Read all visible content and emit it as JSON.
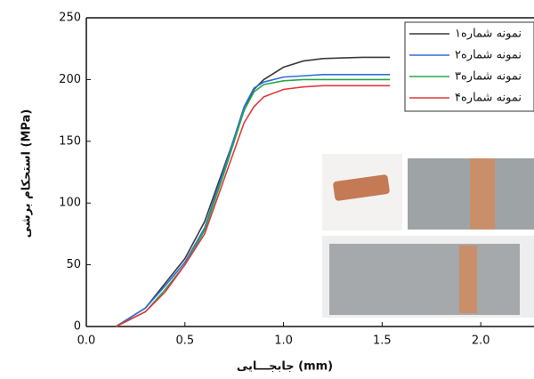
{
  "chart_data": {
    "type": "line",
    "xlabel": "جابجـــایی (mm)",
    "ylabel": "استحکام برشی (MPa)",
    "x": [
      0.15,
      0.3,
      0.4,
      0.5,
      0.6,
      0.7,
      0.8,
      0.85,
      0.9,
      1.0,
      1.1,
      1.2,
      1.4,
      1.54
    ],
    "series": [
      {
        "name": "نمونه شماره۱",
        "color": "#3a3a3a",
        "values": [
          0,
          15,
          35,
          55,
          85,
          130,
          175,
          192,
          200,
          210,
          215,
          217,
          218,
          218
        ]
      },
      {
        "name": "نمونه شماره۲",
        "color": "#2f6fd8",
        "values": [
          0,
          15,
          33,
          52,
          80,
          128,
          178,
          193,
          198,
          202,
          203,
          204,
          204,
          204
        ]
      },
      {
        "name": "نمونه شماره۳",
        "color": "#27a84a",
        "values": [
          0,
          12,
          30,
          50,
          78,
          125,
          175,
          190,
          196,
          199,
          200,
          200,
          200,
          200
        ]
      },
      {
        "name": "نمونه شماره۴",
        "color": "#e0393e",
        "values": [
          0,
          12,
          28,
          50,
          75,
          120,
          165,
          178,
          186,
          192,
          194,
          195,
          195,
          195
        ]
      }
    ],
    "xlim": [
      0,
      2.27
    ],
    "ylim": [
      0,
      250
    ],
    "xticks": [
      {
        "value": 0,
        "label": "0.0"
      },
      0.5,
      {
        "value": 1,
        "label": "1.0"
      },
      1.5,
      {
        "value": 2,
        "label": "2.0"
      }
    ],
    "yticks": [
      0,
      50,
      100,
      150,
      200,
      250
    ],
    "legend": "upper right"
  }
}
